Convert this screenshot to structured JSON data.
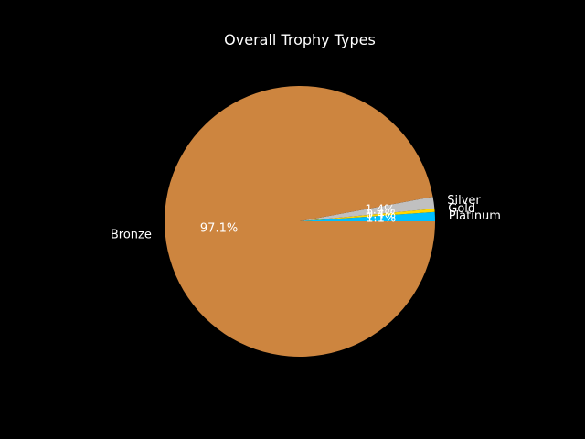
{
  "chart_data": {
    "type": "pie",
    "title": "Overall Trophy Types",
    "start_angle_deg": 0,
    "direction": "counterclockwise",
    "slices": [
      {
        "label": "Platinum",
        "value": 1.1,
        "pct_label": "1.1%",
        "color": "#00bfff"
      },
      {
        "label": "Gold",
        "value": 0.4,
        "pct_label": "0.4%",
        "color": "#ffd700"
      },
      {
        "label": "Silver",
        "value": 1.4,
        "pct_label": "1.4%",
        "color": "#c0c0c0"
      },
      {
        "label": "Bronze",
        "value": 97.1,
        "pct_label": "97.1%",
        "color": "#cd853f"
      }
    ]
  }
}
